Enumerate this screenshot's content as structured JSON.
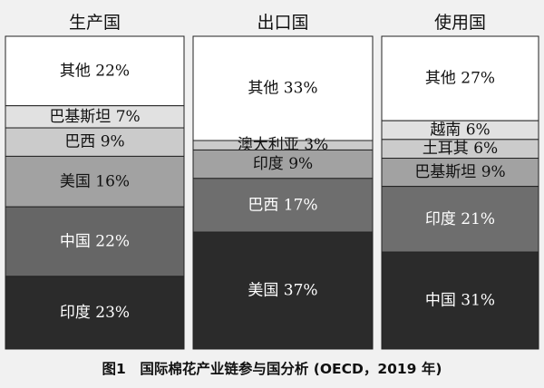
{
  "chart_data": {
    "type": "stacked-bar",
    "caption": "图1　国际棉花产业链参与国分析 (OECD，2019 年)",
    "columns": [
      {
        "title": "生产国",
        "segments": [
          {
            "label": "其他 22%",
            "name": "其他",
            "value": 22,
            "color": "#ffffff"
          },
          {
            "label": "巴基斯坦 7%",
            "name": "巴基斯坦",
            "value": 7,
            "color": "#e1e1e1"
          },
          {
            "label": "巴西 9%",
            "name": "巴西",
            "value": 9,
            "color": "#cbcbcb"
          },
          {
            "label": "美国 16%",
            "name": "美国",
            "value": 16,
            "color": "#a2a2a2"
          },
          {
            "label": "中国 22%",
            "name": "中国",
            "value": 22,
            "color": "#666666"
          },
          {
            "label": "印度 23%",
            "name": "印度",
            "value": 23,
            "color": "#2b2b2b"
          }
        ]
      },
      {
        "title": "出口国",
        "segments": [
          {
            "label": "其他 33%",
            "name": "其他",
            "value": 33,
            "color": "#ffffff"
          },
          {
            "label": "澳大利亚 3%",
            "name": "澳大利亚",
            "value": 3,
            "color": "#cbcbcb"
          },
          {
            "label": "印度 9%",
            "name": "印度",
            "value": 9,
            "color": "#a2a2a2"
          },
          {
            "label": "巴西 17%",
            "name": "巴西",
            "value": 17,
            "color": "#6e6e6e"
          },
          {
            "label": "美国 37%",
            "name": "美国",
            "value": 37,
            "color": "#2b2b2b"
          }
        ]
      },
      {
        "title": "使用国",
        "segments": [
          {
            "label": "其他 27%",
            "name": "其他",
            "value": 27,
            "color": "#ffffff"
          },
          {
            "label": "越南 6%",
            "name": "越南",
            "value": 6,
            "color": "#e1e1e1"
          },
          {
            "label": "土耳其 6%",
            "name": "土耳其",
            "value": 6,
            "color": "#cbcbcb"
          },
          {
            "label": "巴基斯坦 9%",
            "name": "巴基斯坦",
            "value": 9,
            "color": "#a2a2a2"
          },
          {
            "label": "印度 21%",
            "name": "印度",
            "value": 21,
            "color": "#6e6e6e"
          },
          {
            "label": "中国 31%",
            "name": "中国",
            "value": 31,
            "color": "#2b2b2b"
          }
        ]
      }
    ]
  }
}
